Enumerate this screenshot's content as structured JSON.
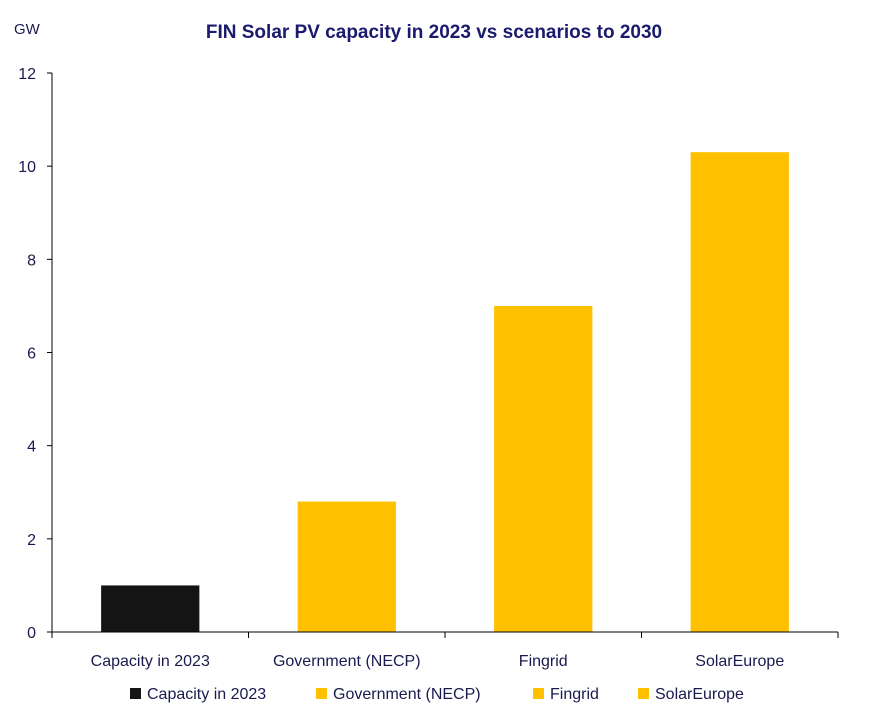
{
  "chart_data": {
    "type": "bar",
    "title": "FIN Solar PV capacity in 2023 vs scenarios to 2030",
    "ylabel": "GW",
    "xlabel": "",
    "ylim": [
      0,
      12
    ],
    "yticks": [
      0,
      2,
      4,
      6,
      8,
      10,
      12
    ],
    "categories": [
      "Capacity in 2023",
      "Government (NECP)",
      "Fingrid",
      "SolarEurope"
    ],
    "values": [
      1.0,
      2.8,
      7.0,
      10.3
    ],
    "colors": [
      "#141414",
      "#ffc000",
      "#ffc000",
      "#ffc000"
    ],
    "legend": [
      {
        "label": "Capacity in 2023",
        "color": "#141414"
      },
      {
        "label": "Government (NECP)",
        "color": "#ffc000"
      },
      {
        "label": "Fingrid",
        "color": "#ffc000"
      },
      {
        "label": "SolarEurope",
        "color": "#ffc000"
      }
    ],
    "legend_position": "bottom",
    "grid": false
  }
}
